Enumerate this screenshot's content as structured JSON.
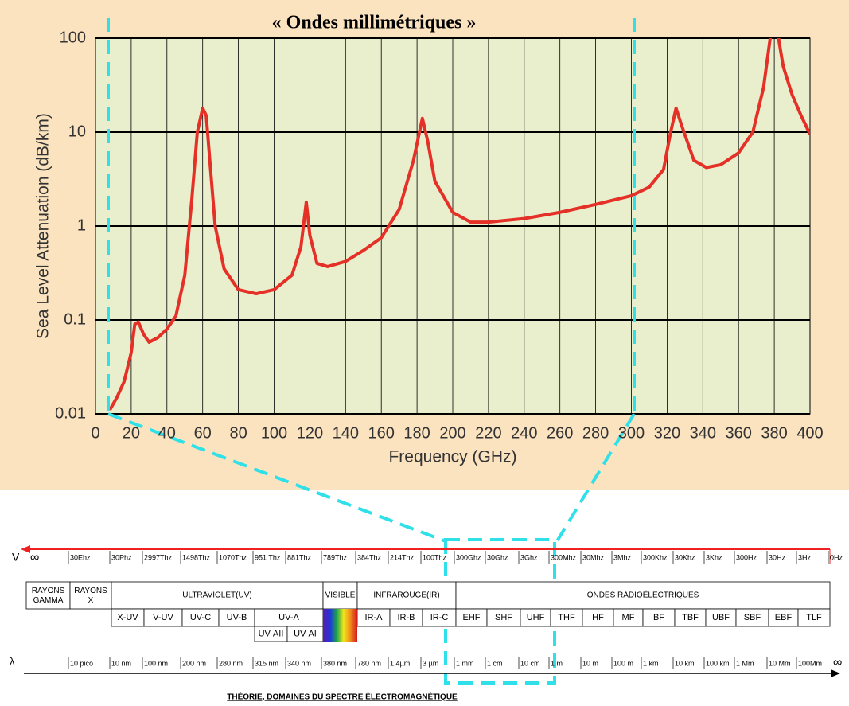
{
  "chart_data": {
    "type": "line",
    "title": "« Ondes millimétriques »",
    "x_label": "Frequency (GHz)",
    "y_label": "Sea Level Attenuation (dB/km)",
    "x": [
      8,
      12,
      16,
      20,
      22,
      24,
      27,
      30,
      35,
      40,
      45,
      50,
      54,
      57,
      60,
      62,
      64,
      67,
      72,
      80,
      90,
      100,
      110,
      115,
      118,
      120,
      124,
      130,
      140,
      150,
      160,
      170,
      178,
      183,
      186,
      190,
      200,
      210,
      220,
      240,
      260,
      280,
      300,
      310,
      318,
      322,
      325,
      328,
      335,
      342,
      350,
      360,
      368,
      374,
      378,
      382,
      385,
      390,
      395,
      400
    ],
    "series": [
      {
        "color": "#e53027",
        "values": [
          0.011,
          0.015,
          0.022,
          0.045,
          0.09,
          0.095,
          0.07,
          0.058,
          0.065,
          0.08,
          0.11,
          0.3,
          2,
          10,
          18,
          15,
          5,
          1,
          0.35,
          0.21,
          0.19,
          0.21,
          0.3,
          0.6,
          1.8,
          0.8,
          0.4,
          0.37,
          0.42,
          0.55,
          0.75,
          1.5,
          5,
          14,
          8,
          3,
          1.4,
          1.1,
          1.1,
          1.2,
          1.4,
          1.7,
          2.1,
          2.6,
          4,
          10,
          18,
          12,
          5,
          4.2,
          4.5,
          6,
          10,
          30,
          110,
          110,
          50,
          25,
          15,
          9.5
        ]
      }
    ],
    "xlim": [
      0,
      400
    ],
    "xticks": [
      0,
      20,
      40,
      60,
      80,
      100,
      120,
      140,
      160,
      180,
      200,
      220,
      240,
      260,
      280,
      300,
      320,
      340,
      360,
      380,
      400
    ],
    "ylim": [
      0.01,
      100
    ],
    "yticks": [
      0.01,
      0.1,
      1,
      10,
      100
    ],
    "y_scale": "log",
    "grid": true
  },
  "spectrum": {
    "frequency_symbol": "V",
    "wavelength_symbol": "λ",
    "infinity": "∞",
    "frequencies": [
      "30Ehz",
      "30Phz",
      "2997Thz",
      "1498Thz",
      "1070Thz",
      "951 Thz",
      "881Thz",
      "789Thz",
      "384Thz",
      "214Thz",
      "100Thz",
      "300Ghz",
      "30Ghz",
      "3Ghz",
      "300Mhz",
      "30Mhz",
      "3Mhz",
      "300Khz",
      "30Khz",
      "3Khz",
      "300Hz",
      "30Hz",
      "3Hz",
      "0Hz"
    ],
    "wavelengths": [
      "10 pico",
      "10 nm",
      "100 nm",
      "200 nm",
      "280 nm",
      "315 nm",
      "340 nm",
      "380 nm",
      "780 nm",
      "1,4µm",
      "3 µm",
      "1 mm",
      "1 cm",
      "10 cm",
      "1 m",
      "10 m",
      "100 m",
      "1 km",
      "10 km",
      "100 km",
      "1 Mm",
      "10 Mm",
      "100Mm"
    ],
    "domains": [
      "RAYONS GAMMA",
      "RAYONS X",
      "ULTRAVIOLET(UV)",
      "VISIBLE",
      "INFRAROUGE(IR)",
      "ONDES RADIOÉLECTRIQUES"
    ],
    "bands": [
      "X-UV",
      "V-UV",
      "UV-C",
      "UV-B",
      "UV-A",
      "IR-A",
      "IR-B",
      "IR-C",
      "EHF",
      "SHF",
      "UHF",
      "THF",
      "HF",
      "MF",
      "BF",
      "TBF",
      "UBF",
      "SBF",
      "EBF",
      "TLF"
    ],
    "uva_bands": [
      "UV-AII",
      "UV-AI"
    ],
    "caption": "THÉORIE, DOMAINES DU SPECTRE ÉLECTROMAGNÉTIQUE"
  }
}
